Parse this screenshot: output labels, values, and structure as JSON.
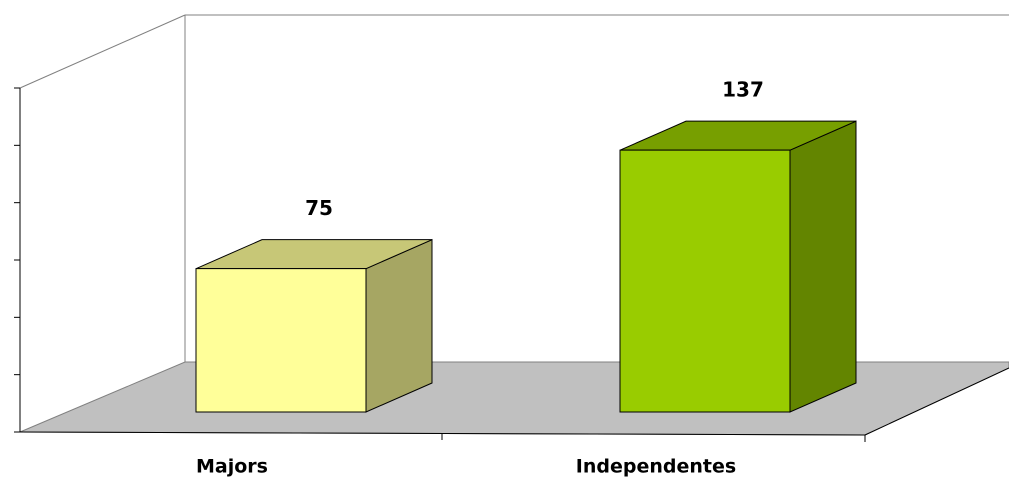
{
  "chart_data": {
    "type": "bar3d",
    "categories": [
      "Majors",
      "Independentes"
    ],
    "values": [
      75,
      137
    ],
    "colors": [
      "#ffff99",
      "#99cc00"
    ],
    "ylim": [
      0,
      180
    ],
    "yticks": [
      0,
      30,
      60,
      90,
      120,
      150,
      180
    ]
  }
}
